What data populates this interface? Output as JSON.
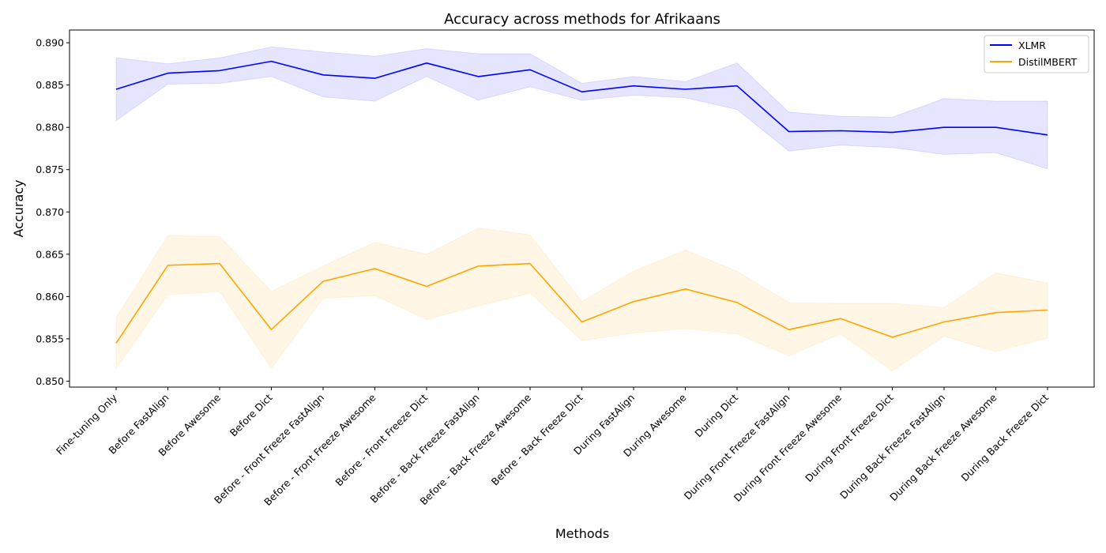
{
  "chart_data": {
    "type": "line",
    "title": "Accuracy across methods for Afrikaans",
    "xlabel": "Methods",
    "ylabel": "Accuracy",
    "ylim": [
      0.8493,
      0.8915
    ],
    "yticks": [
      "0.850",
      "0.855",
      "0.860",
      "0.865",
      "0.870",
      "0.875",
      "0.880",
      "0.885",
      "0.890"
    ],
    "legend_position": "top-right",
    "grid": false,
    "categories": [
      "Fine-tuning Only",
      "Before FastAlign",
      "Before Awesome",
      "Before Dict",
      "Before - Front Freeze FastAlign",
      "Before - Front Freeze Awesome",
      "Before - Front Freeze Dict",
      "Before - Back Freeze FastAlign",
      "Before - Back Freeze Awesome",
      "Before - Back Freeze Dict",
      "During FastAlign",
      "During Awesome",
      "During Dict",
      "During Front Freeze FastAlign",
      "During Front Freeze Awesome",
      "During Front Freeze Dict",
      "During Back Freeze FastAlign",
      "During Back Freeze Awesome",
      "During Back Freeze Dict"
    ],
    "series": [
      {
        "name": "XLMR",
        "color": "#0000ff",
        "band_color": "#0000ff",
        "values": [
          0.8845,
          0.8864,
          0.8867,
          0.8878,
          0.8862,
          0.8858,
          0.8876,
          0.886,
          0.8868,
          0.8842,
          0.8849,
          0.8845,
          0.8849,
          0.8795,
          0.8796,
          0.8794,
          0.88,
          0.88,
          0.8791
        ],
        "lower": [
          0.8808,
          0.8851,
          0.8852,
          0.886,
          0.8836,
          0.8831,
          0.886,
          0.8832,
          0.8848,
          0.8832,
          0.8838,
          0.8835,
          0.8821,
          0.8772,
          0.8779,
          0.8776,
          0.8768,
          0.877,
          0.8751
        ],
        "upper": [
          0.8882,
          0.8875,
          0.8882,
          0.8895,
          0.8889,
          0.8884,
          0.8893,
          0.8887,
          0.8887,
          0.8852,
          0.886,
          0.8854,
          0.8876,
          0.8818,
          0.8813,
          0.8812,
          0.8834,
          0.8831,
          0.8831
        ]
      },
      {
        "name": "DistilMBERT",
        "color": "#ffa500",
        "band_color": "#ffa500",
        "values": [
          0.8545,
          0.8637,
          0.8639,
          0.8561,
          0.8618,
          0.8633,
          0.8612,
          0.8636,
          0.8639,
          0.857,
          0.8594,
          0.8609,
          0.8593,
          0.8561,
          0.8574,
          0.8552,
          0.857,
          0.8581,
          0.8584
        ],
        "lower": [
          0.8515,
          0.8602,
          0.8606,
          0.8515,
          0.8598,
          0.8601,
          0.8573,
          0.8589,
          0.8604,
          0.8548,
          0.8557,
          0.8562,
          0.8556,
          0.853,
          0.8556,
          0.8512,
          0.8553,
          0.8535,
          0.8551
        ],
        "upper": [
          0.8575,
          0.8672,
          0.8671,
          0.8606,
          0.8636,
          0.8664,
          0.865,
          0.8681,
          0.8673,
          0.8594,
          0.863,
          0.8655,
          0.863,
          0.8593,
          0.8592,
          0.8592,
          0.8587,
          0.8628,
          0.8616
        ]
      }
    ]
  }
}
